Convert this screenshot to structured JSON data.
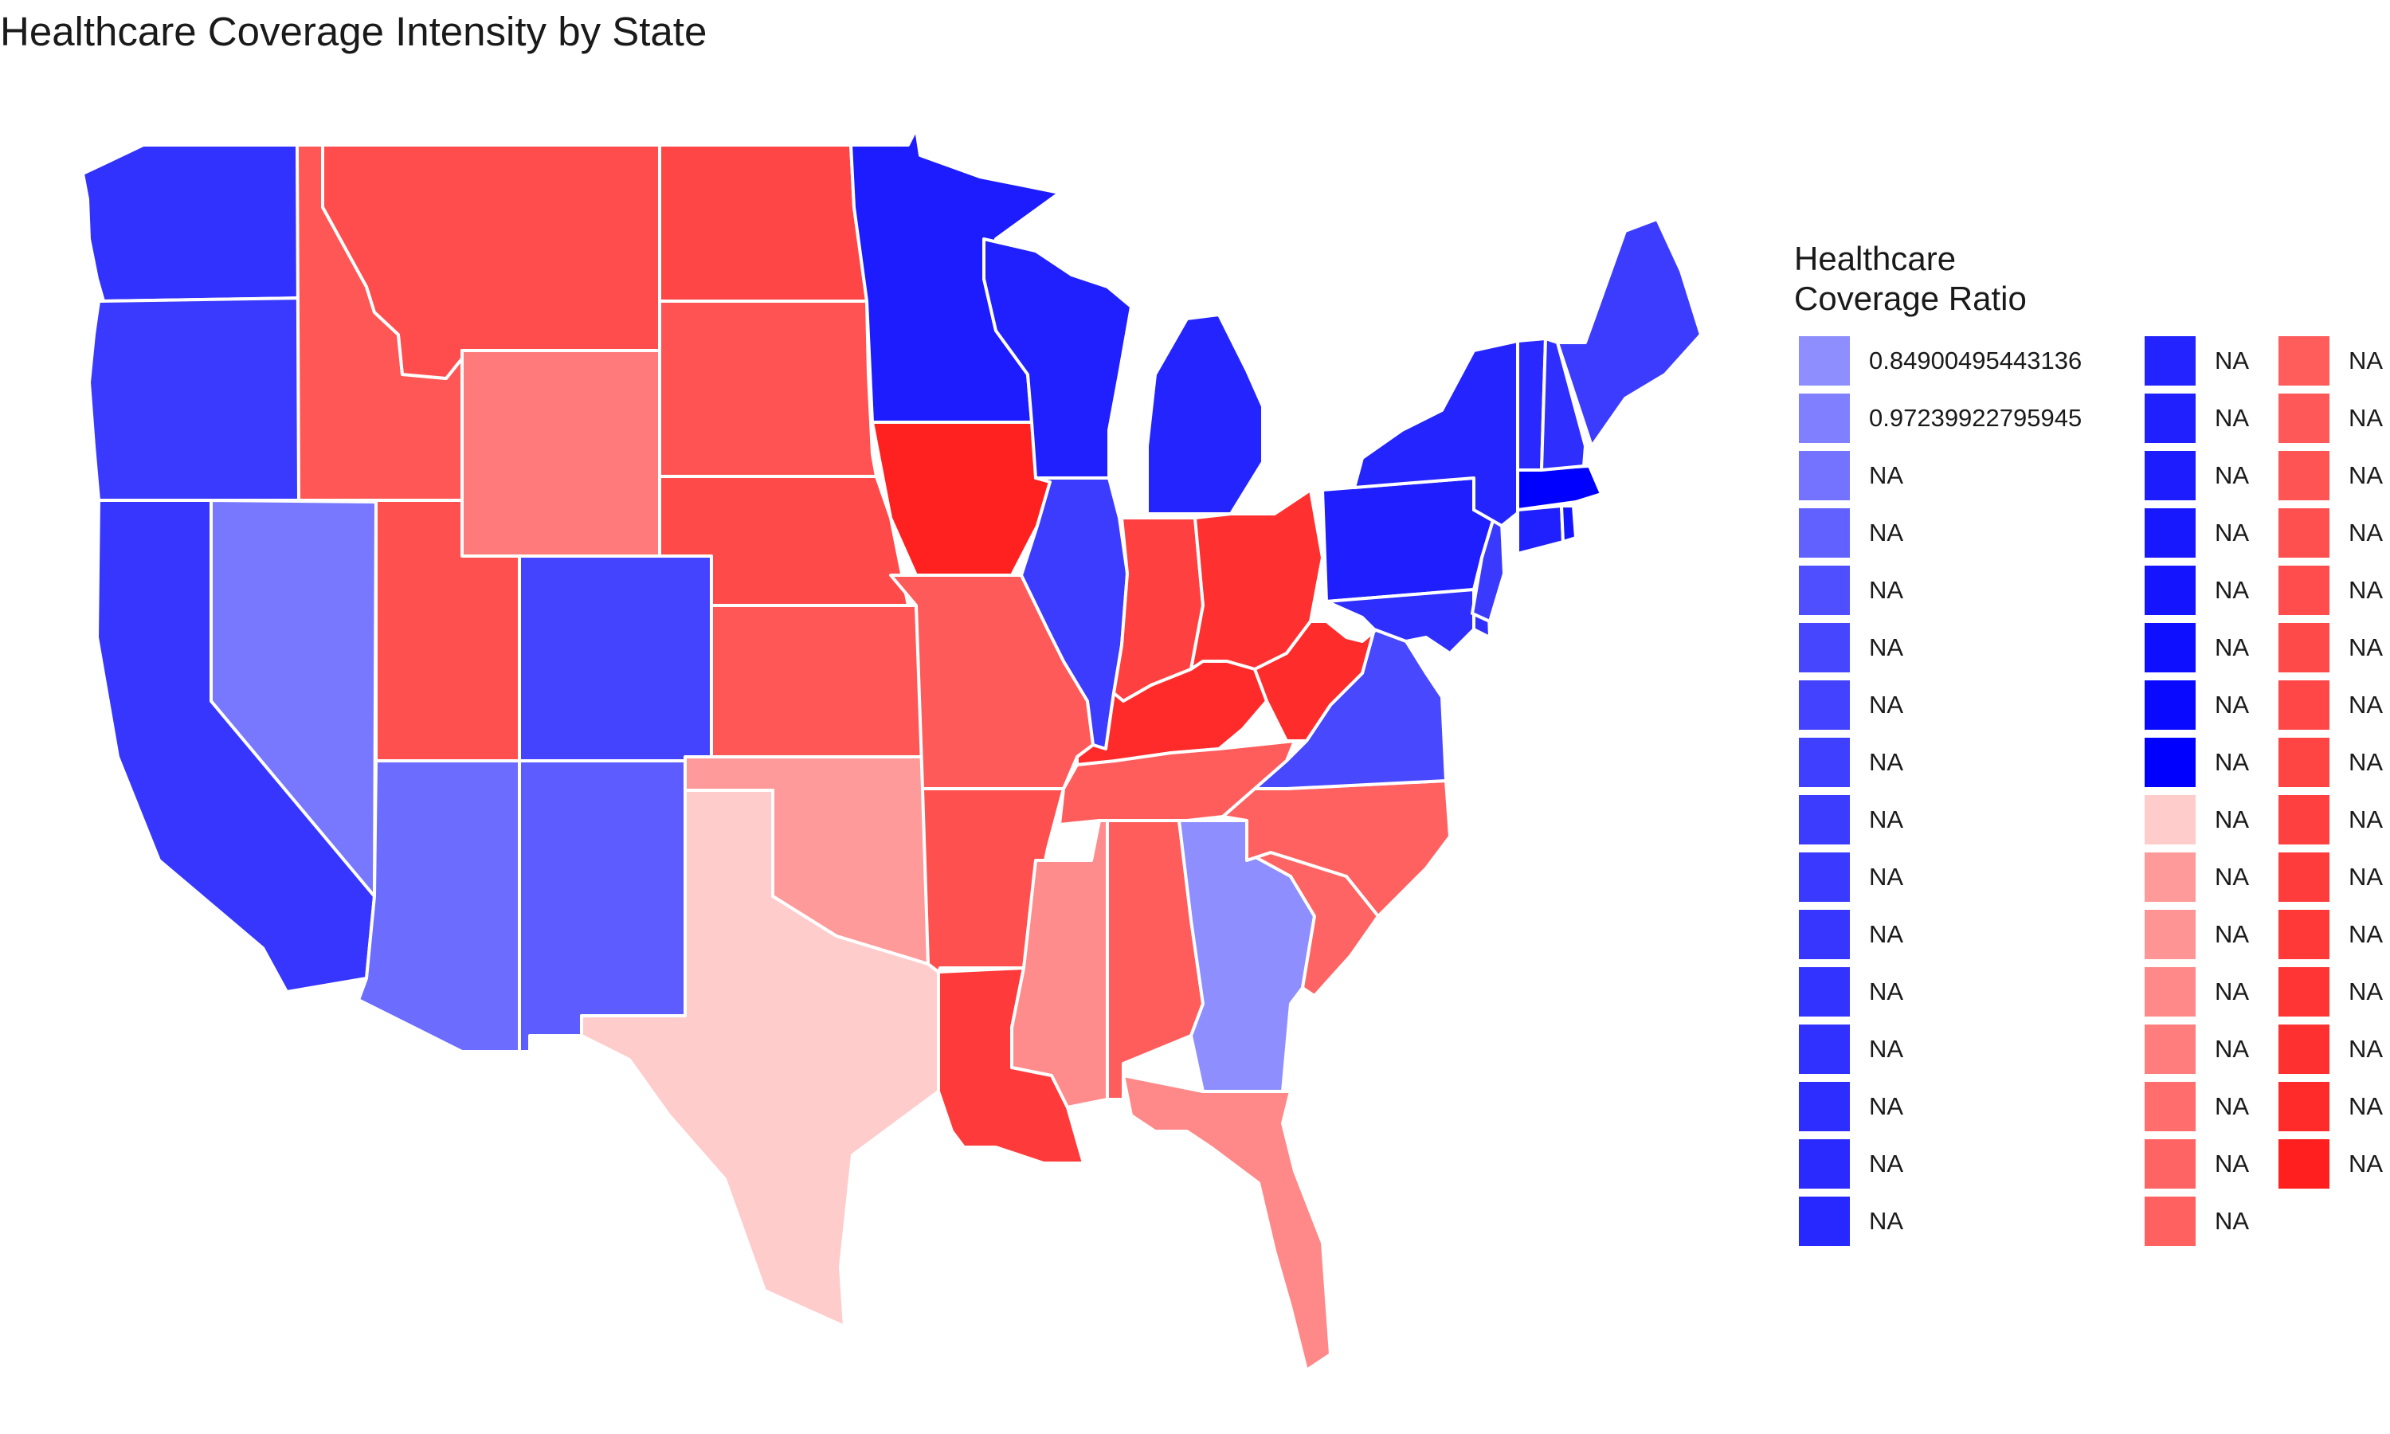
{
  "title": "Healthcare Coverage Intensity by State",
  "legend": {
    "title_line1": "Healthcare",
    "title_line2": "Coverage Ratio",
    "columns": [
      {
        "items": [
          {
            "color": "#8e8eff",
            "label": "0.84900495443136"
          },
          {
            "color": "#7f7fff",
            "label": "0.97239922795945"
          },
          {
            "color": "#7373ff",
            "label": "NA"
          },
          {
            "color": "#6161ff",
            "label": "NA"
          },
          {
            "color": "#4f4fff",
            "label": "NA"
          },
          {
            "color": "#4646ff",
            "label": "NA"
          },
          {
            "color": "#4242ff",
            "label": "NA"
          },
          {
            "color": "#3f3fff",
            "label": "NA"
          },
          {
            "color": "#3c3cff",
            "label": "NA"
          },
          {
            "color": "#3939ff",
            "label": "NA"
          },
          {
            "color": "#3636ff",
            "label": "NA"
          },
          {
            "color": "#3333ff",
            "label": "NA"
          },
          {
            "color": "#3030ff",
            "label": "NA"
          },
          {
            "color": "#2d2dff",
            "label": "NA"
          },
          {
            "color": "#2a2aff",
            "label": "NA"
          },
          {
            "color": "#2727ff",
            "label": "NA"
          }
        ]
      },
      {
        "items": [
          {
            "color": "#2323ff",
            "label": "NA"
          },
          {
            "color": "#2020ff",
            "label": "NA"
          },
          {
            "color": "#1c1cff",
            "label": "NA"
          },
          {
            "color": "#1818ff",
            "label": "NA"
          },
          {
            "color": "#1414ff",
            "label": "NA"
          },
          {
            "color": "#0f0fff",
            "label": "NA"
          },
          {
            "color": "#0909ff",
            "label": "NA"
          },
          {
            "color": "#0000ff",
            "label": "NA"
          },
          {
            "color": "#ffcccc",
            "label": "NA"
          },
          {
            "color": "#ff9a9a",
            "label": "NA"
          },
          {
            "color": "#ff9494",
            "label": "NA"
          },
          {
            "color": "#ff8888",
            "label": "NA"
          },
          {
            "color": "#ff7d7d",
            "label": "NA"
          },
          {
            "color": "#ff6d6d",
            "label": "NA"
          },
          {
            "color": "#ff6464",
            "label": "NA"
          },
          {
            "color": "#ff6060",
            "label": "NA"
          }
        ]
      },
      {
        "items": [
          {
            "color": "#ff5c5c",
            "label": "NA"
          },
          {
            "color": "#ff5858",
            "label": "NA"
          },
          {
            "color": "#ff5454",
            "label": "NA"
          },
          {
            "color": "#ff5050",
            "label": "NA"
          },
          {
            "color": "#ff4d4d",
            "label": "NA"
          },
          {
            "color": "#ff4a4a",
            "label": "NA"
          },
          {
            "color": "#ff4747",
            "label": "NA"
          },
          {
            "color": "#ff4444",
            "label": "NA"
          },
          {
            "color": "#ff4040",
            "label": "NA"
          },
          {
            "color": "#ff3c3c",
            "label": "NA"
          },
          {
            "color": "#ff3838",
            "label": "NA"
          },
          {
            "color": "#ff3434",
            "label": "NA"
          },
          {
            "color": "#ff3030",
            "label": "NA"
          },
          {
            "color": "#ff2a2a",
            "label": "NA"
          },
          {
            "color": "#ff1f1f",
            "label": "NA"
          }
        ]
      }
    ]
  },
  "states": [
    {
      "name": "WA",
      "color": "#3232ff"
    },
    {
      "name": "OR",
      "color": "#3a3aff"
    },
    {
      "name": "CA",
      "color": "#3636ff"
    },
    {
      "name": "NV",
      "color": "#7878ff"
    },
    {
      "name": "ID",
      "color": "#ff5656"
    },
    {
      "name": "MT",
      "color": "#ff4c4c"
    },
    {
      "name": "WY",
      "color": "#ff7a7a"
    },
    {
      "name": "UT",
      "color": "#ff5050"
    },
    {
      "name": "AZ",
      "color": "#6c6cff"
    },
    {
      "name": "CO",
      "color": "#4444ff"
    },
    {
      "name": "NM",
      "color": "#5c5cff"
    },
    {
      "name": "ND",
      "color": "#ff4646"
    },
    {
      "name": "SD",
      "color": "#ff5252"
    },
    {
      "name": "NE",
      "color": "#ff4a4a"
    },
    {
      "name": "KS",
      "color": "#ff5656"
    },
    {
      "name": "OK",
      "color": "#ff9a9a"
    },
    {
      "name": "TX",
      "color": "#ffcccc"
    },
    {
      "name": "MN",
      "color": "#1c1cff"
    },
    {
      "name": "IA",
      "color": "#ff2020"
    },
    {
      "name": "MO",
      "color": "#ff5a5a"
    },
    {
      "name": "AR",
      "color": "#ff5050"
    },
    {
      "name": "LA",
      "color": "#ff3a3a"
    },
    {
      "name": "WI",
      "color": "#2020ff"
    },
    {
      "name": "IL",
      "color": "#3c3cff"
    },
    {
      "name": "MI",
      "color": "#2424ff"
    },
    {
      "name": "IN",
      "color": "#ff4040"
    },
    {
      "name": "OH",
      "color": "#ff3030"
    },
    {
      "name": "KY",
      "color": "#ff2a2a"
    },
    {
      "name": "TN",
      "color": "#ff5c5c"
    },
    {
      "name": "MS",
      "color": "#ff8c8c"
    },
    {
      "name": "AL",
      "color": "#ff5c5c"
    },
    {
      "name": "GA",
      "color": "#8e8eff"
    },
    {
      "name": "FL",
      "color": "#ff8888"
    },
    {
      "name": "SC",
      "color": "#ff6464"
    },
    {
      "name": "NC",
      "color": "#ff6060"
    },
    {
      "name": "VA",
      "color": "#4848ff"
    },
    {
      "name": "WV",
      "color": "#ff2c2c"
    },
    {
      "name": "PA",
      "color": "#1e1eff"
    },
    {
      "name": "MD",
      "color": "#2e2eff"
    },
    {
      "name": "DE",
      "color": "#3030ff"
    },
    {
      "name": "NJ",
      "color": "#3a3aff"
    },
    {
      "name": "NY",
      "color": "#2424ff"
    },
    {
      "name": "CT",
      "color": "#2020ff"
    },
    {
      "name": "RI",
      "color": "#1414ff"
    },
    {
      "name": "MA",
      "color": "#0000ff"
    },
    {
      "name": "VT",
      "color": "#2828ff"
    },
    {
      "name": "NH",
      "color": "#2e2eff"
    },
    {
      "name": "ME",
      "color": "#3c3cff"
    }
  ]
}
